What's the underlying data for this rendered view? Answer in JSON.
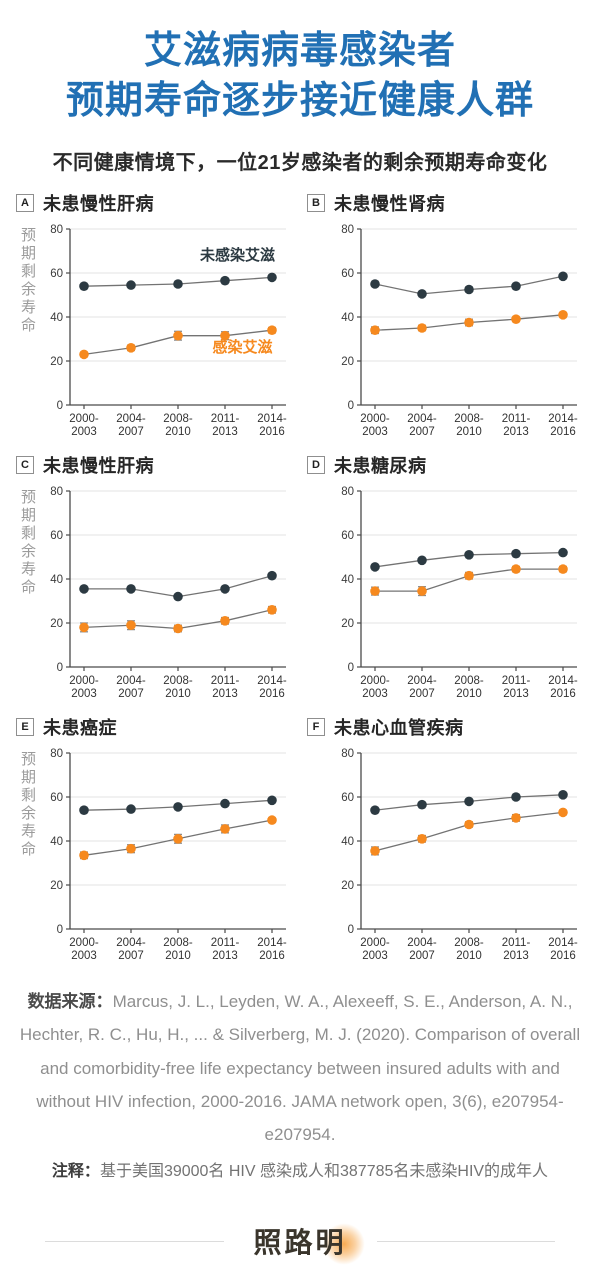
{
  "header": {
    "title_line1": "艾滋病病毒感染者",
    "title_line2": "预期寿命逐步接近健康人群",
    "subtitle": "不同健康情境下，一位21岁感染者的剩余预期寿命变化"
  },
  "legend": {
    "uninfected": "未感染艾滋",
    "infected": "感染艾滋"
  },
  "colors": {
    "title_blue": "#2170b4",
    "uninfected": "#2c3a42",
    "infected": "#f6891e",
    "grid": "#e3e3e3",
    "axis": "#4a4a4a",
    "connector": "#737373",
    "errbar": "#8a8a8a",
    "tick_text": "#3b3b3b"
  },
  "axis": {
    "y_label": "预期剩余寿命",
    "y_ticks": [
      0,
      20,
      40,
      60,
      80
    ],
    "ylim": [
      0,
      80
    ],
    "x_categories": [
      [
        "2000-",
        "2003"
      ],
      [
        "2004-",
        "2007"
      ],
      [
        "2008-",
        "2010"
      ],
      [
        "2011-",
        "2013"
      ],
      [
        "2014-",
        "2016"
      ]
    ]
  },
  "chart_data": [
    {
      "type": "line",
      "label": "A",
      "title": "未患慢性肝病",
      "show_ylabel": true,
      "annotate": true,
      "ylim": [
        0,
        80
      ],
      "grid": true,
      "series": [
        {
          "name": "未感染艾滋",
          "key": "uninfected",
          "values": [
            54,
            54.5,
            55,
            56.5,
            58
          ],
          "err": [
            0,
            0,
            0,
            0,
            0
          ]
        },
        {
          "name": "感染艾滋",
          "key": "infected",
          "values": [
            23,
            26,
            31.5,
            31.5,
            34
          ],
          "err": [
            1,
            1.2,
            2,
            1.8,
            1.2
          ]
        }
      ]
    },
    {
      "type": "line",
      "label": "B",
      "title": "未患慢性肾病",
      "show_ylabel": false,
      "annotate": false,
      "ylim": [
        0,
        80
      ],
      "grid": true,
      "series": [
        {
          "name": "未感染艾滋",
          "key": "uninfected",
          "values": [
            55,
            50.5,
            52.5,
            54,
            58.5
          ],
          "err": [
            0,
            0,
            0,
            0,
            0
          ]
        },
        {
          "name": "感染艾滋",
          "key": "infected",
          "values": [
            34,
            35,
            37.5,
            39,
            41
          ],
          "err": [
            1.5,
            1.2,
            1.5,
            1,
            1
          ]
        }
      ]
    },
    {
      "type": "line",
      "label": "C",
      "title": "未患慢性肝病",
      "show_ylabel": true,
      "annotate": false,
      "ylim": [
        0,
        80
      ],
      "grid": true,
      "series": [
        {
          "name": "未感染艾滋",
          "key": "uninfected",
          "values": [
            35.5,
            35.5,
            32,
            35.5,
            41.5
          ],
          "err": [
            0,
            0,
            0,
            0,
            0
          ]
        },
        {
          "name": "感染艾滋",
          "key": "infected",
          "values": [
            18,
            19,
            17.5,
            21,
            26
          ],
          "err": [
            2,
            2,
            1.5,
            1.5,
            1.5
          ]
        }
      ]
    },
    {
      "type": "line",
      "label": "D",
      "title": "未患糖尿病",
      "show_ylabel": false,
      "annotate": false,
      "ylim": [
        0,
        80
      ],
      "grid": true,
      "series": [
        {
          "name": "未感染艾滋",
          "key": "uninfected",
          "values": [
            45.5,
            48.5,
            51,
            51.5,
            52
          ],
          "err": [
            0,
            0,
            0,
            0,
            0
          ]
        },
        {
          "name": "感染艾滋",
          "key": "infected",
          "values": [
            34.5,
            34.5,
            41.5,
            44.5,
            44.5
          ],
          "err": [
            1.8,
            2,
            1.5,
            1.2,
            1.2
          ]
        }
      ]
    },
    {
      "type": "line",
      "label": "E",
      "title": "未患癌症",
      "show_ylabel": true,
      "annotate": false,
      "ylim": [
        0,
        80
      ],
      "grid": true,
      "series": [
        {
          "name": "未感染艾滋",
          "key": "uninfected",
          "values": [
            54,
            54.5,
            55.5,
            57,
            58.5
          ],
          "err": [
            0,
            0,
            0,
            0,
            0
          ]
        },
        {
          "name": "感染艾滋",
          "key": "infected",
          "values": [
            33.5,
            36.5,
            41,
            45.5,
            49.5
          ],
          "err": [
            1.5,
            1.8,
            2,
            1.8,
            1
          ]
        }
      ]
    },
    {
      "type": "line",
      "label": "F",
      "title": "未患心血管疾病",
      "show_ylabel": false,
      "annotate": false,
      "ylim": [
        0,
        80
      ],
      "grid": true,
      "series": [
        {
          "name": "未感染艾滋",
          "key": "uninfected",
          "values": [
            54,
            56.5,
            58,
            60,
            61
          ],
          "err": [
            0,
            0,
            0,
            0,
            0
          ]
        },
        {
          "name": "感染艾滋",
          "key": "infected",
          "values": [
            35.5,
            41,
            47.5,
            50.5,
            53
          ],
          "err": [
            1.8,
            1.5,
            1.2,
            1.5,
            1
          ]
        }
      ]
    }
  ],
  "footer": {
    "source_label": "数据来源：",
    "source_text": "Marcus, J. L., Leyden, W. A., Alexeeff, S. E., Anderson, A. N., Hechter, R. C., Hu, H., ... & Silverberg, M. J. (2020). Comparison of overall and comorbidity-free life expectancy between insured adults with and without HIV infection, 2000-2016. JAMA network open, 3(6), e207954-e207954.",
    "note_label": "注释：",
    "note_text": "基于美国39000名 HIV 感染成人和387785名未感染HIV的成年人",
    "logo": "照路明"
  }
}
